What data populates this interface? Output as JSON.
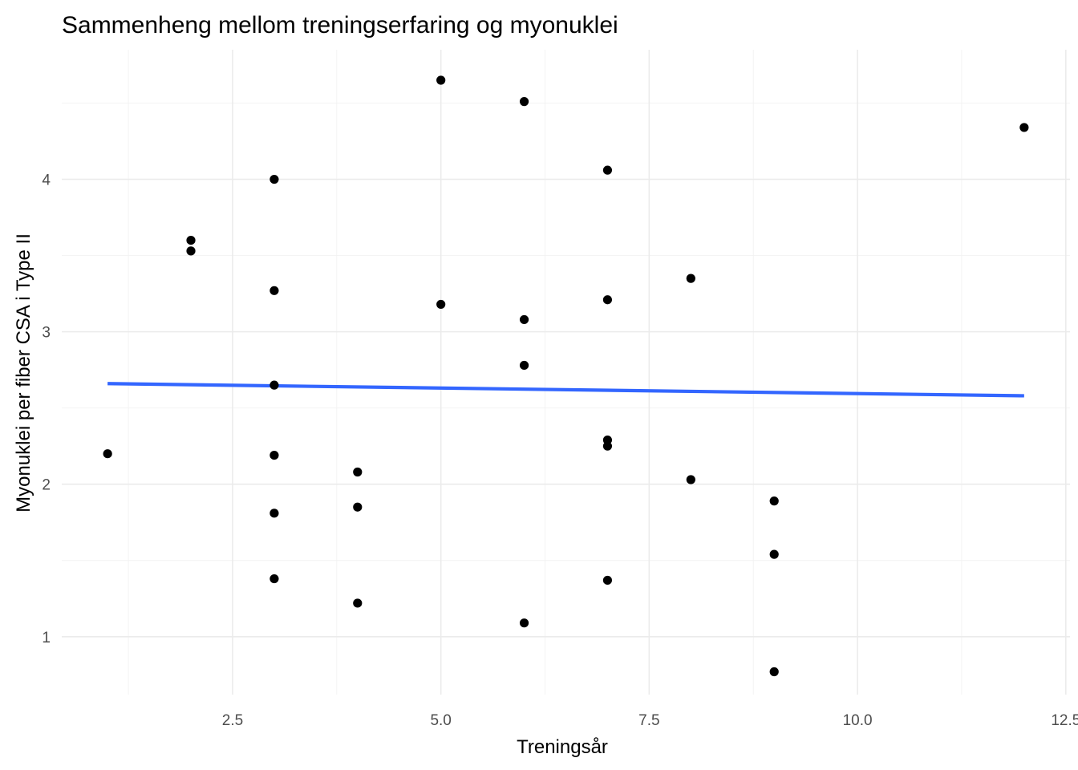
{
  "chart_data": {
    "type": "scatter",
    "title": "Sammenheng mellom treningserfaring og myonuklei",
    "xlabel": "Treningsår",
    "ylabel": "Myonuklei per fiber CSA i Type II",
    "xlim": [
      0.45,
      12.55
    ],
    "ylim": [
      0.62,
      4.85
    ],
    "x_ticks": [
      2.5,
      5.0,
      7.5,
      10.0,
      12.5
    ],
    "x_tick_labels": [
      "2.5",
      "5.0",
      "7.5",
      "10.0",
      "12.5"
    ],
    "y_ticks": [
      1,
      2,
      3,
      4
    ],
    "y_tick_labels": [
      "1",
      "2",
      "3",
      "4"
    ],
    "grid": true,
    "legend": "none",
    "colors": {
      "points": "#000000",
      "trend": "#3366ff",
      "grid": "#ebebeb"
    },
    "series": [
      {
        "x": [
          1,
          2,
          2,
          3,
          3,
          3,
          3,
          3,
          3,
          4,
          4,
          4,
          5,
          5,
          6,
          6,
          6,
          6,
          7,
          7,
          7,
          7,
          7,
          8,
          8,
          9,
          9,
          9,
          12
        ],
        "y": [
          2.2,
          3.6,
          3.53,
          4.0,
          3.27,
          2.65,
          2.19,
          1.81,
          1.38,
          2.08,
          1.85,
          1.22,
          4.65,
          3.18,
          4.51,
          3.08,
          2.78,
          1.09,
          4.06,
          3.21,
          2.29,
          2.25,
          1.37,
          3.35,
          2.03,
          1.89,
          1.54,
          0.77,
          4.34
        ]
      }
    ],
    "trend_line": {
      "method": "lm",
      "x": [
        1,
        12
      ],
      "y": [
        2.66,
        2.58
      ]
    }
  }
}
